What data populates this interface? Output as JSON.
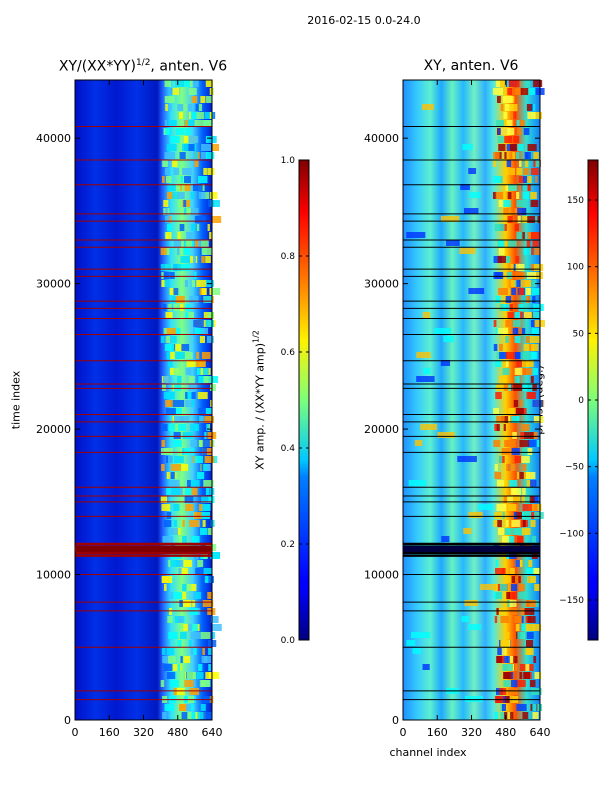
{
  "figure": {
    "suptitle": "2016-02-15 0.0-24.0",
    "shared_xlabel": "channel index"
  },
  "chart_data": [
    {
      "type": "heatmap",
      "title": "XY/(XX*YY)",
      "title_exponent": "1/2",
      "title_suffix": ", anten. V6",
      "xlabel": "",
      "ylabel": "time index",
      "xlim": [
        0,
        640
      ],
      "ylim": [
        0,
        44000
      ],
      "xticks": [
        0,
        160,
        320,
        480,
        640
      ],
      "yticks": [
        0,
        10000,
        20000,
        30000,
        40000
      ],
      "colormap": "jet",
      "colorbar": {
        "label": "XY amp. / (XX*YY amp)",
        "label_exponent": "1/2",
        "range": [
          0.0,
          1.0
        ],
        "ticks": [
          "0.0",
          "0.2",
          "0.4",
          "0.6",
          "0.8",
          "1.0"
        ]
      },
      "flagged_rows_time_index": [
        1400,
        2000,
        5000,
        7500,
        8100,
        10000,
        11300,
        11500,
        11700,
        11900,
        12100,
        14000,
        15000,
        15400,
        16000,
        18400,
        19500,
        20500,
        21000,
        22800,
        23100,
        24700,
        26500,
        27600,
        28300,
        28800,
        30500,
        31000,
        32500,
        33000,
        34300,
        34800,
        36800,
        38500,
        40800
      ]
    },
    {
      "type": "heatmap",
      "title": "XY, anten. V6",
      "xlabel": "channel index",
      "ylabel": "",
      "xlim": [
        0,
        640
      ],
      "ylim": [
        0,
        44000
      ],
      "xticks": [
        0,
        160,
        320,
        480,
        640
      ],
      "yticks": [
        0,
        10000,
        20000,
        30000,
        40000
      ],
      "colormap": "jet",
      "colorbar": {
        "label": "phase (deg.)",
        "range": [
          -180,
          180
        ],
        "ticks": [
          "−150",
          "−100",
          "−50",
          "0",
          "50",
          "100",
          "150"
        ],
        "tick_values": [
          -150,
          -100,
          -50,
          0,
          50,
          100,
          150
        ]
      },
      "flagged_rows_time_index": [
        1400,
        2000,
        5000,
        7500,
        8100,
        10000,
        11300,
        11500,
        11700,
        11900,
        12100,
        14000,
        15000,
        15400,
        16000,
        18400,
        19500,
        20500,
        21000,
        22800,
        23100,
        24700,
        26500,
        27600,
        28300,
        28800,
        30500,
        31000,
        32500,
        33000,
        34300,
        34800,
        36800,
        38500,
        40800
      ]
    }
  ]
}
